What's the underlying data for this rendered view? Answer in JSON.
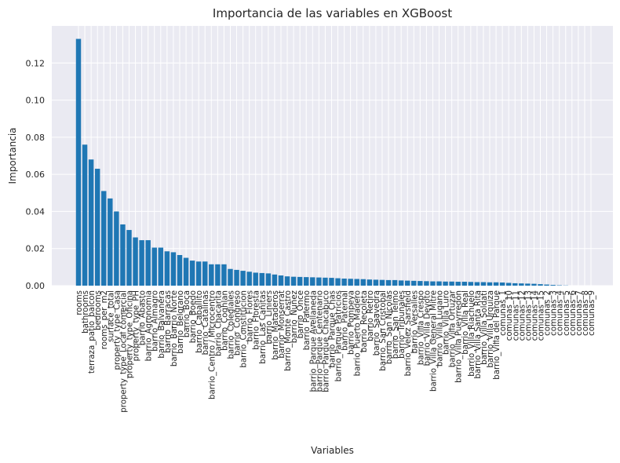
{
  "chart_data": {
    "type": "bar",
    "title": "Importancia de las variables en XGBoost",
    "xlabel": "Variables",
    "ylabel": "Importancia",
    "ylim": [
      0,
      0.14
    ],
    "yticks": [
      "0.00",
      "0.02",
      "0.04",
      "0.06",
      "0.08",
      "0.10",
      "0.12"
    ],
    "grid": true,
    "bar_color": "#1f77b4",
    "background_color": "#eaeaf2",
    "categories": [
      "rooms",
      "bathrooms",
      "terraza_patio_balcon",
      "bedrooms",
      "rooms_per_m2",
      "surface_total",
      "property_type_Casa",
      "property_type_Local comercial",
      "property_type_Oficina",
      "property_type_PH",
      "barrio_Abasto",
      "barrio_Agronomia",
      "barrio_Almagro",
      "barrio_Balvanera",
      "barrio_Barracas",
      "barrio_Barrio Norte",
      "barrio_Belgrano",
      "barrio_Boca",
      "barrio_Boedo",
      "barrio_Caballito",
      "barrio_Catalinas",
      "barrio_Centro / Microcentro",
      "barrio_Chacarita",
      "barrio_Coghlan",
      "barrio_Colegiales",
      "barrio_Congreso",
      "barrio_Constitucion",
      "barrio_Flores",
      "barrio_Floresta",
      "barrio_Las Cañitas",
      "barrio_Liniers",
      "barrio_Mataderos",
      "barrio_Monserrat",
      "barrio_Monte Castro",
      "barrio_Nuñez",
      "barrio_Once",
      "barrio_Palermo",
      "barrio_Parque Avellaneda",
      "barrio_Parque Centenario",
      "barrio_Parque Chacabuco",
      "barrio_Parque Chas",
      "barrio_Parque Patricios",
      "barrio_Paternal",
      "barrio_Pompeya",
      "barrio_Puerto Madero",
      "barrio_Recoleta",
      "barrio_Retiro",
      "barrio_Saavedra",
      "barrio_San Cristobal",
      "barrio_San Nicolás",
      "barrio_San Telmo",
      "barrio_Tribunales",
      "barrio_Velez Sarsfield",
      "barrio_Versalles",
      "barrio_Villa Crespo",
      "barrio_Villa Devoto",
      "barrio_Villa General Mitre",
      "barrio_Villa Lugano",
      "barrio_Villa Luro",
      "barrio_Villa Ortuzar",
      "barrio_Villa Pueyrredón",
      "barrio_Villa Real",
      "barrio_Villa Riachuelo",
      "barrio_Villa Santa Rita",
      "barrio_Villa Soldati",
      "barrio_Villa Urquiza",
      "barrio_Villa del Parque",
      "comunas_1",
      "comunas_10",
      "comunas_11",
      "comunas_12",
      "comunas_13",
      "comunas_14",
      "comunas_15",
      "comunas_2",
      "comunas_3",
      "comunas_4",
      "comunas_5",
      "comunas_6",
      "comunas_7",
      "comunas_8",
      "comunas_9"
    ],
    "values": [
      0.133,
      0.076,
      0.068,
      0.063,
      0.051,
      0.047,
      0.04,
      0.033,
      0.03,
      0.026,
      0.0245,
      0.0245,
      0.0205,
      0.0205,
      0.0185,
      0.018,
      0.0165,
      0.015,
      0.0135,
      0.013,
      0.013,
      0.0115,
      0.0115,
      0.0115,
      0.009,
      0.0085,
      0.008,
      0.0075,
      0.007,
      0.0068,
      0.0066,
      0.006,
      0.0055,
      0.005,
      0.0048,
      0.0047,
      0.0046,
      0.0045,
      0.0044,
      0.0043,
      0.0042,
      0.004,
      0.0038,
      0.0037,
      0.0036,
      0.0035,
      0.0033,
      0.0032,
      0.0031,
      0.003,
      0.003,
      0.0028,
      0.0027,
      0.0026,
      0.0025,
      0.0024,
      0.0023,
      0.0023,
      0.0022,
      0.0022,
      0.0021,
      0.0021,
      0.002,
      0.0019,
      0.0019,
      0.0018,
      0.0018,
      0.0017,
      0.0015,
      0.0013,
      0.0012,
      0.0011,
      0.001,
      0.0008,
      0.0006,
      0.0004,
      0.0002,
      0.0001,
      0,
      0,
      0,
      0
    ]
  }
}
